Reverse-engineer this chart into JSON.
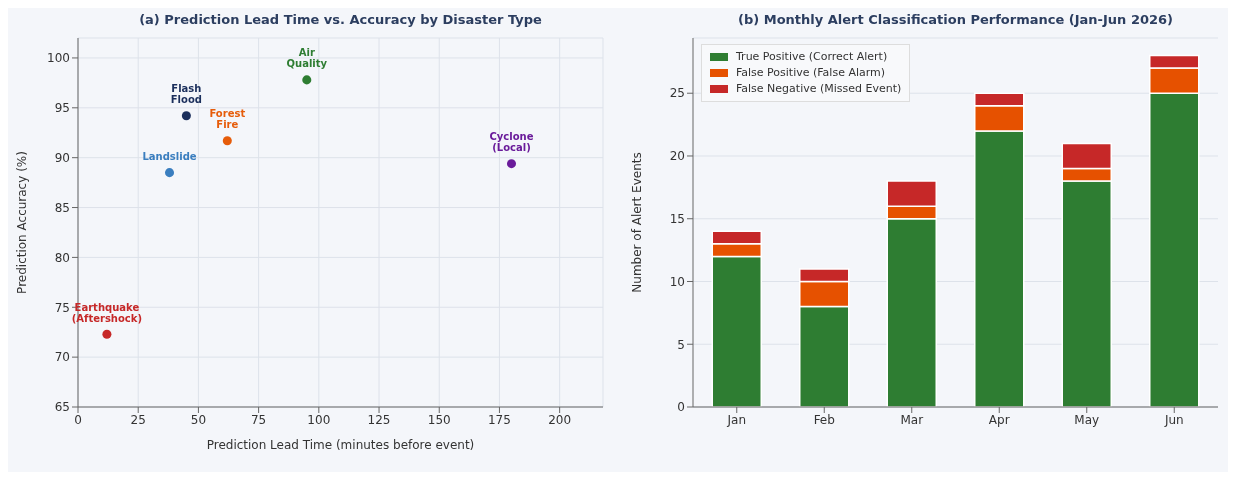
{
  "chart_data": [
    {
      "type": "scatter",
      "title": "(a) Prediction Lead Time vs. Accuracy by Disaster Type",
      "xlabel": "Prediction Lead Time (minutes before event)",
      "ylabel": "Prediction Accuracy (%)",
      "xlim": [
        0,
        218
      ],
      "ylim": [
        65,
        102
      ],
      "xticks": [
        0,
        25,
        50,
        75,
        100,
        125,
        150,
        175,
        200
      ],
      "yticks": [
        65,
        70,
        75,
        80,
        85,
        90,
        95,
        100
      ],
      "grid": true,
      "marker": "circle",
      "legend": false,
      "series": [
        {
          "name": "Earthquake (Aftershock)",
          "color": "#c62828",
          "x": [
            12
          ],
          "values": [
            72.3
          ]
        },
        {
          "name": "Landslide",
          "color": "#3a7ebf",
          "x": [
            38
          ],
          "values": [
            88.5
          ]
        },
        {
          "name": "Flash Flood",
          "color": "#1b2f5c",
          "x": [
            45
          ],
          "values": [
            94.2
          ]
        },
        {
          "name": "Forest Fire",
          "color": "#e65c0a",
          "x": [
            62
          ],
          "values": [
            91.7
          ]
        },
        {
          "name": "Air Quality",
          "color": "#2e7d32",
          "x": [
            95
          ],
          "values": [
            97.8
          ]
        },
        {
          "name": "Cyclone (Local)",
          "color": "#6a1b9a",
          "x": [
            180
          ],
          "values": [
            89.4
          ]
        }
      ]
    },
    {
      "type": "bar",
      "stacked": true,
      "title": "(b) Monthly Alert Classification Performance (Jan-Jun 2026)",
      "ylabel": "Number of Alert Events",
      "categories": [
        "Jan",
        "Feb",
        "Mar",
        "Apr",
        "May",
        "Jun"
      ],
      "ylim": [
        0,
        29.4
      ],
      "yticks": [
        0,
        5,
        10,
        15,
        20,
        25
      ],
      "grid": "y",
      "legend": "top left",
      "series": [
        {
          "name": "True Positive (Correct Alert)",
          "color": "#2e7d32",
          "values": [
            12,
            8,
            15,
            22,
            18,
            25
          ]
        },
        {
          "name": "False Positive (False Alarm)",
          "color": "#e65100",
          "values": [
            1,
            2,
            1,
            2,
            1,
            2
          ]
        },
        {
          "name": "False Negative (Missed Event)",
          "color": "#c62828",
          "values": [
            1,
            1,
            2,
            1,
            2,
            1
          ]
        }
      ]
    }
  ]
}
